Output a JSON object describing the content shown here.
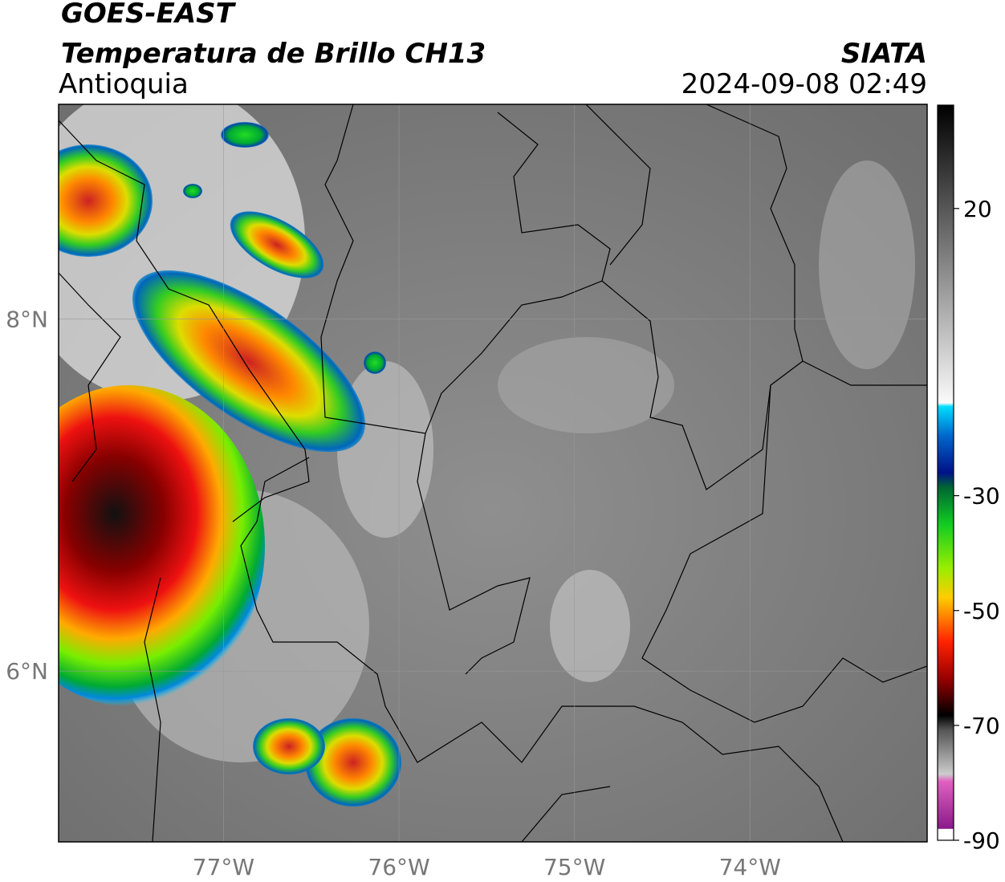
{
  "header": {
    "title": "GOES-EAST",
    "subtitle": "Temperatura de Brillo CH13",
    "region": "Antioquia",
    "source": "SIATA",
    "datetime": "2024-09-08 02:49"
  },
  "map": {
    "xlim": [
      -77.94,
      -72.99
    ],
    "ylim": [
      5.03,
      9.22
    ],
    "xticks": [
      {
        "value": -77,
        "label": "77°W"
      },
      {
        "value": -76,
        "label": "76°W"
      },
      {
        "value": -75,
        "label": "75°W"
      },
      {
        "value": -74,
        "label": "74°W"
      }
    ],
    "yticks": [
      {
        "value": 8,
        "label": "8°N"
      },
      {
        "value": 6,
        "label": "6°N"
      }
    ],
    "grid": true
  },
  "colorbar": {
    "lim": [
      -90,
      38
    ],
    "ticks": [
      20,
      -30,
      -50,
      -70,
      -90
    ]
  }
}
